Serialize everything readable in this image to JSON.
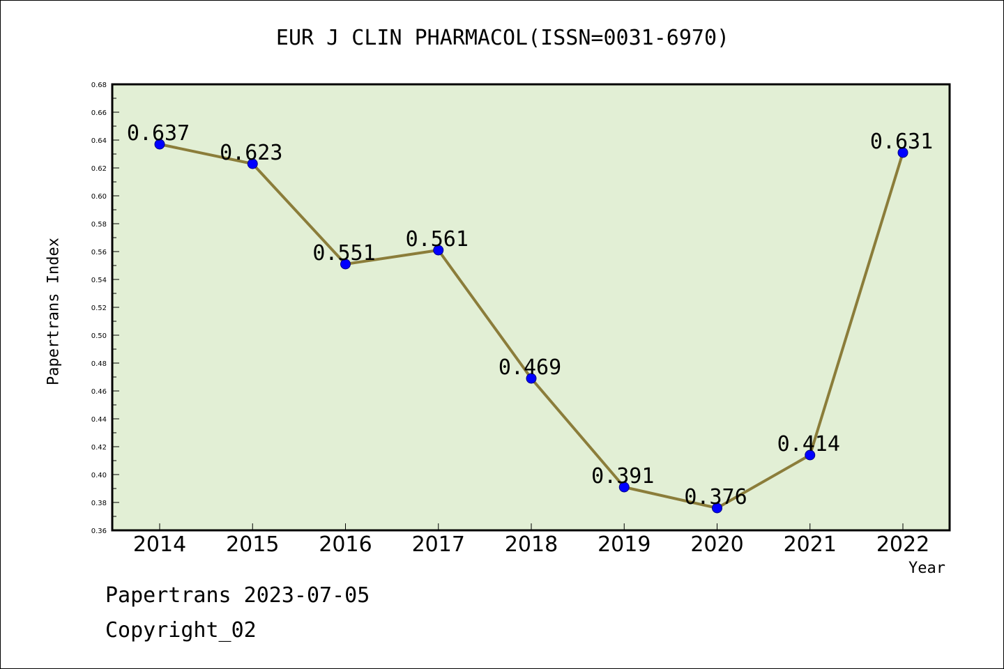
{
  "chart_data": {
    "type": "line",
    "title": "EUR J CLIN PHARMACOL(ISSN=0031-6970)",
    "xlabel": "Year",
    "ylabel": "Papertrans Index",
    "categories": [
      "2014",
      "2015",
      "2016",
      "2017",
      "2018",
      "2019",
      "2020",
      "2021",
      "2022"
    ],
    "series": [
      {
        "values": [
          0.637,
          0.623,
          0.551,
          0.561,
          0.469,
          0.391,
          0.376,
          0.414,
          0.631
        ],
        "data_labels": [
          "0.637",
          "0.623",
          "0.551",
          "0.561",
          "0.469",
          "0.391",
          "0.376",
          "0.414",
          "0.631"
        ]
      }
    ],
    "ylim": [
      0.36,
      0.68
    ],
    "yticks": [
      "0.36",
      "0.38",
      "0.40",
      "0.42",
      "0.44",
      "0.46",
      "0.48",
      "0.50",
      "0.52",
      "0.54",
      "0.56",
      "0.58",
      "0.60",
      "0.62",
      "0.64",
      "0.66",
      "0.68"
    ],
    "grid": false,
    "legend": "none",
    "colors": {
      "plot_background": "#e2efd5",
      "line": "#8b7d3a",
      "marker": "#0000ff",
      "marker_edge": "#000080"
    }
  },
  "footer": {
    "date_text": "Papertrans 2023-07-05",
    "copyright_text": "Copyright_02"
  }
}
